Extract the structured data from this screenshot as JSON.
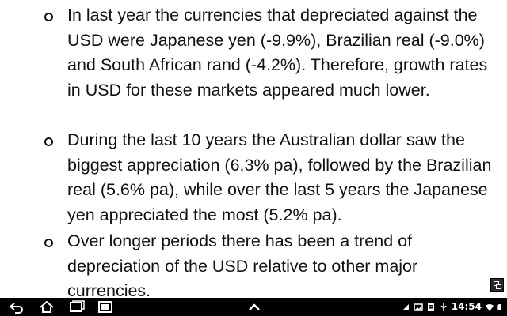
{
  "slide": {
    "bullets": [
      {
        "text": "In last year the currencies that depreciated against the USD were Japanese yen (-9.9%), Brazilian real (-9.0%) and South African rand (-4.2%). Therefore, growth rates in USD for these markets appeared much lower."
      },
      {
        "text": "During the last 10 years the Australian dollar saw the biggest appreciation (6.3% pa), followed by the Brazilian real (5.6% pa), while over the last 5 years the Japanese yen appreciated the most (5.2% pa)."
      },
      {
        "text": "Over longer periods there has been a trend of depreciation of the USD relative to other major currencies."
      }
    ]
  },
  "navbar": {
    "left_icons": [
      "back-icon",
      "home-icon",
      "recent-apps-icon",
      "screenshot-icon"
    ],
    "center_icon": "chevron-up-icon",
    "status_icons": [
      "download-icon",
      "gallery-icon",
      "notification-icon",
      "usb-icon",
      "wifi-icon",
      "battery-icon"
    ],
    "clock": "14:54"
  },
  "colors": {
    "background": "#ffffff",
    "text": "#111111",
    "navbar": "#000000",
    "navbar_icon": "#ffffff"
  }
}
